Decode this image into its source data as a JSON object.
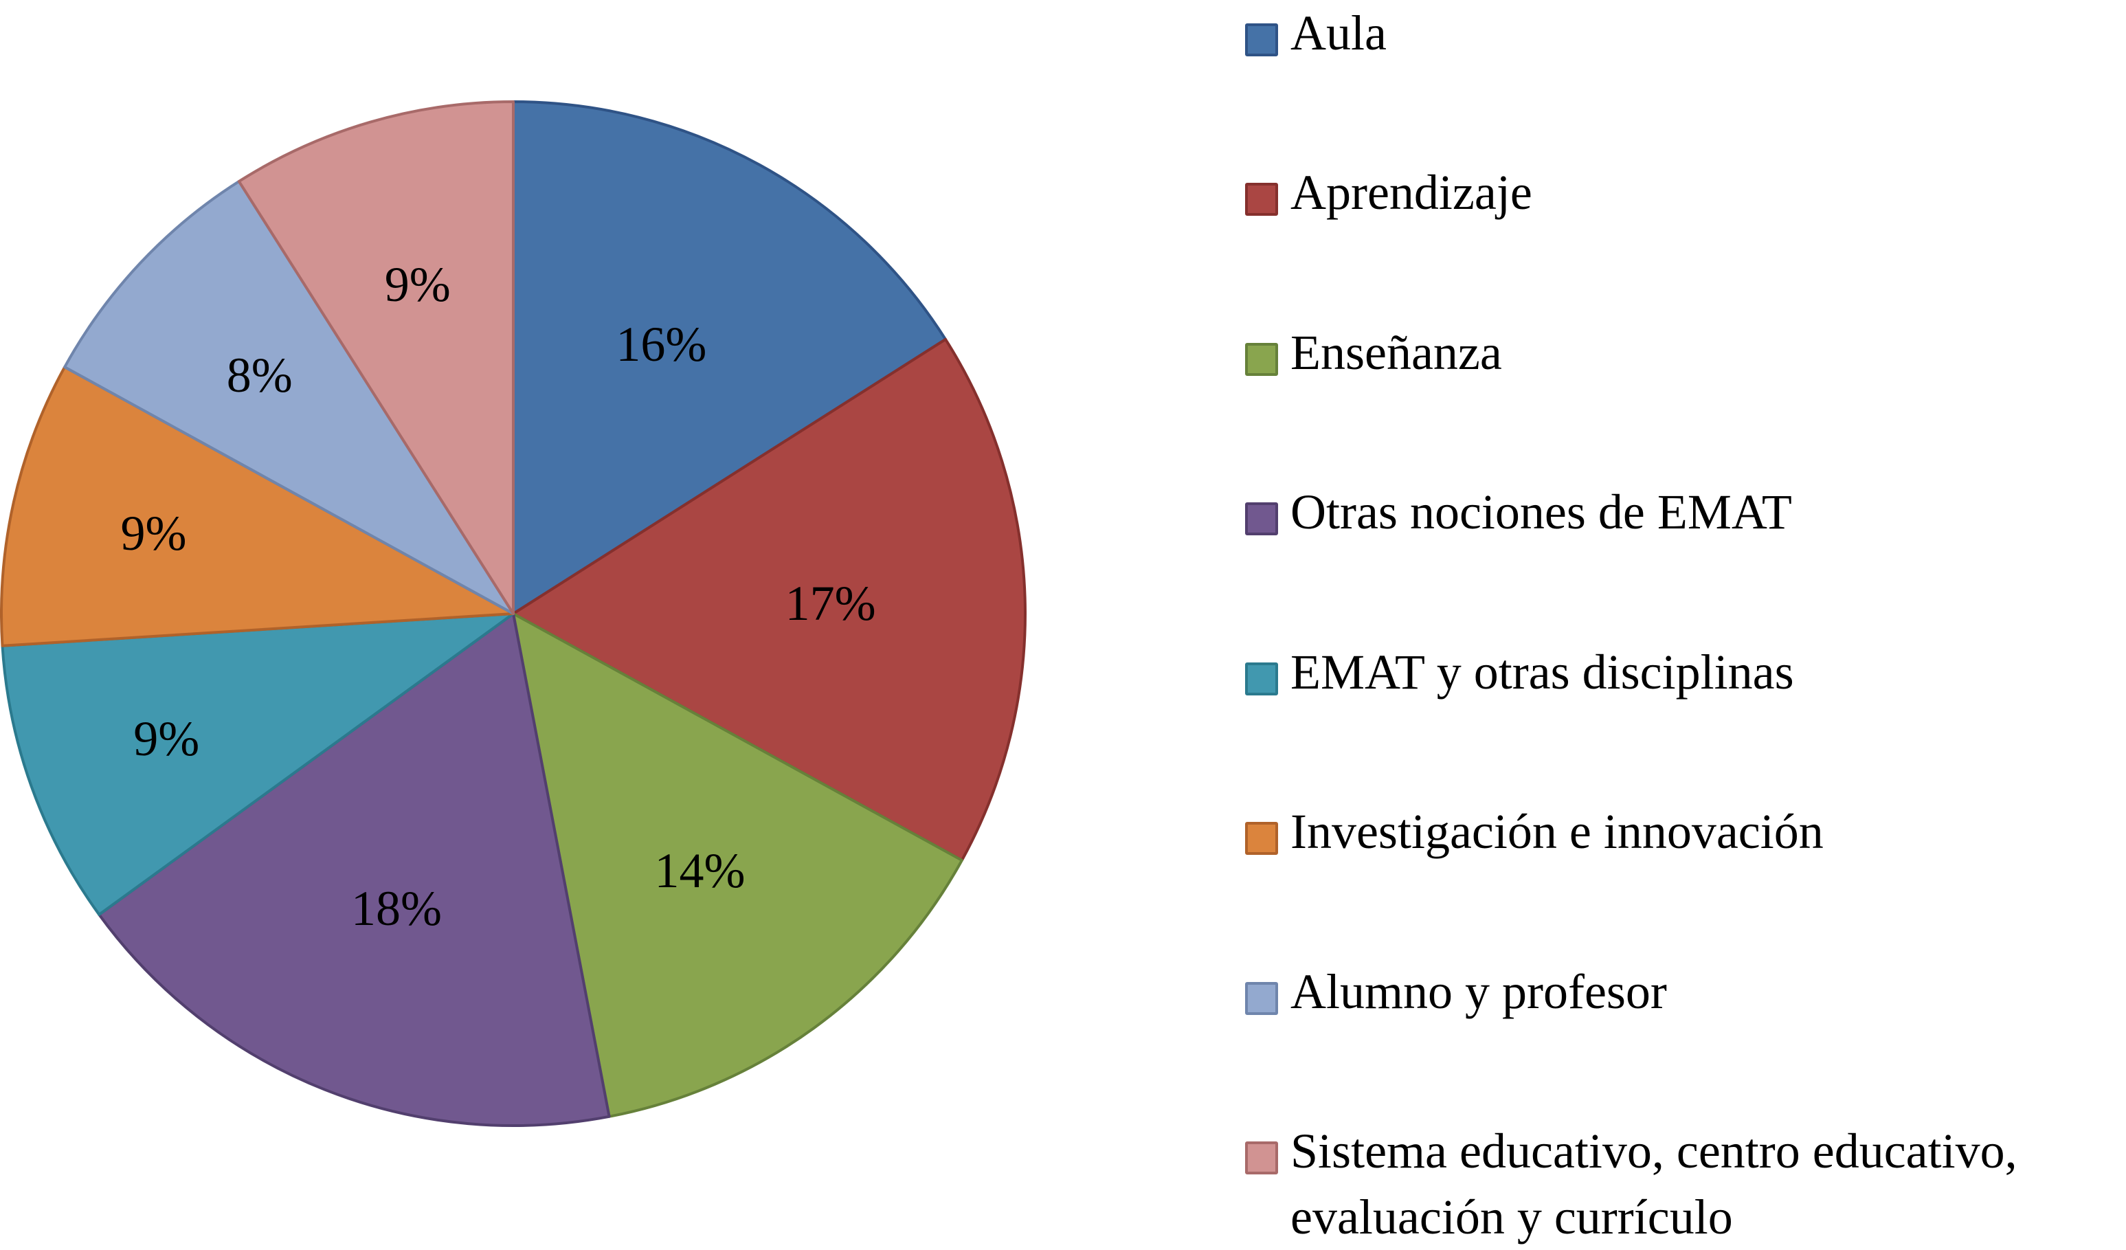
{
  "chart_data": {
    "type": "pie",
    "title": "",
    "categories": [
      "Aula",
      "Aprendizaje",
      "Enseñanza",
      "Otras nociones de EMAT",
      "EMAT y otras disciplinas",
      "Investigación e innovación",
      "Alumno y profesor",
      "Sistema educativo, centro educativo, evaluación y currículo"
    ],
    "values": [
      16,
      17,
      14,
      18,
      9,
      9,
      8,
      9
    ],
    "labels": [
      "16%",
      "17%",
      "14%",
      "18%",
      "9%",
      "9%",
      "8%",
      "9%"
    ],
    "colors": [
      "#4572A7",
      "#AA4643",
      "#89A54E",
      "#71588F",
      "#4198AF",
      "#DB843D",
      "#93A9CF",
      "#D19392"
    ],
    "border_colors": [
      "#2F5386",
      "#85302D",
      "#66813A",
      "#523F6E",
      "#2B7A8E",
      "#B0622A",
      "#6F85AC",
      "#A86A69"
    ],
    "legend_position": "right",
    "start_angle": "12 o'clock, clockwise"
  },
  "legend": {
    "items": [
      {
        "label": "Aula"
      },
      {
        "label": "Aprendizaje"
      },
      {
        "label": "Enseñanza"
      },
      {
        "label": "Otras nociones de EMAT"
      },
      {
        "label": "EMAT y otras disciplinas"
      },
      {
        "label": "Investigación e innovación"
      },
      {
        "label": "Alumno y profesor"
      },
      {
        "label": "Sistema educativo, centro educativo,",
        "label_line2": "evaluación y currículo"
      }
    ]
  }
}
